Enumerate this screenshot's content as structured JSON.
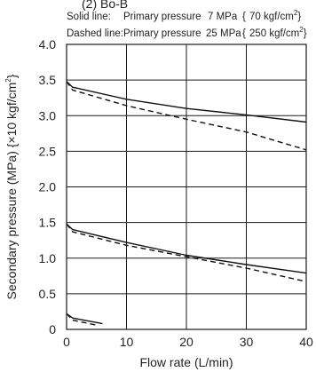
{
  "header_partial": "(2) Bo-B",
  "legend": {
    "solid": {
      "prefix": "Solid line:",
      "desc": "Primary pressure",
      "value": "7 MPa",
      "open": "{",
      "imperial": "70 kgf/cm",
      "sup": "2",
      "close": "}"
    },
    "dashed": {
      "prefix": "Dashed line:",
      "desc": "Primary pressure",
      "value": "25 MPa",
      "open": "{",
      "imperial": "250 kgf/cm",
      "sup": "2",
      "close": "}"
    }
  },
  "axes": {
    "ylabel_main": "Secondary pressure (MPa) {×10 kgf/cm",
    "ylabel_sup": "2",
    "ylabel_close": "}",
    "xlabel": "Flow rate (L/min)"
  },
  "chart_data": {
    "type": "line",
    "xlabel": "Flow rate (L/min)",
    "ylabel": "Secondary pressure (MPa) {×10 kgf/cm2}",
    "xlim": [
      0,
      40
    ],
    "ylim": [
      0,
      4.0
    ],
    "x_ticks": [
      0,
      10,
      20,
      30,
      40
    ],
    "x_tick_labels": [
      "0",
      "10",
      "20",
      "30",
      "40"
    ],
    "y_ticks": [
      0,
      0.5,
      1.0,
      1.5,
      2.0,
      2.5,
      3.0,
      3.5,
      4.0
    ],
    "y_tick_labels": [
      "0",
      "0.5",
      "1.0",
      "1.5",
      "2.0",
      "2.5",
      "3.0",
      "3.5",
      "4.0"
    ],
    "grid": true,
    "series": [
      {
        "style": "solid",
        "x": [
          0,
          1,
          10,
          20,
          30,
          40
        ],
        "y": [
          3.48,
          3.4,
          3.23,
          3.1,
          3.01,
          2.91
        ]
      },
      {
        "style": "dashed",
        "x": [
          0,
          1,
          10,
          20,
          30,
          40
        ],
        "y": [
          3.48,
          3.36,
          3.14,
          2.95,
          2.77,
          2.52
        ]
      },
      {
        "style": "solid",
        "x": [
          0,
          1,
          10,
          20,
          30,
          40
        ],
        "y": [
          1.48,
          1.4,
          1.22,
          1.04,
          0.91,
          0.79
        ]
      },
      {
        "style": "dashed",
        "x": [
          0,
          1,
          10,
          20,
          30,
          40
        ],
        "y": [
          1.48,
          1.37,
          1.18,
          1.02,
          0.86,
          0.67
        ]
      },
      {
        "style": "solid",
        "x": [
          0,
          1,
          6
        ],
        "y": [
          0.22,
          0.16,
          0.08
        ]
      },
      {
        "style": "dashed",
        "x": [
          0,
          1,
          5
        ],
        "y": [
          0.22,
          0.13,
          0.06
        ]
      }
    ]
  },
  "colors": {
    "line": "#111111",
    "grid": "#1a1a1a",
    "text": "#222222"
  }
}
